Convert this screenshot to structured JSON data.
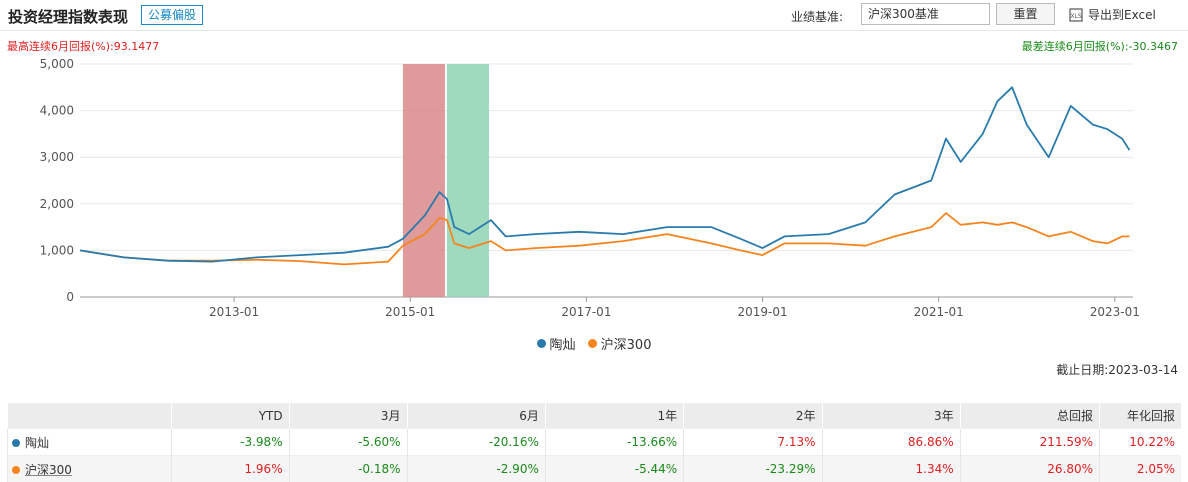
{
  "header": {
    "title": "投资经理指数表现",
    "tag": "公募偏股",
    "benchmark_label": "业绩基准:",
    "benchmark_value": "沪深300基准",
    "reset_label": "重置",
    "export_label": "导出到Excel"
  },
  "stats": {
    "max_label": "最高连续6月回报(%):",
    "max_value": "93.1477",
    "min_label": "最差连续6月回报(%):",
    "min_value": "-30.3467"
  },
  "cutoff": {
    "label": "截止日期:",
    "value": "2023-03-14"
  },
  "colors": {
    "manager": "#2a7bad",
    "benchmark": "#f5841f",
    "red_band": "#d98a8a",
    "green_band": "#8fd3b3",
    "pos": "#e02020",
    "neg": "#1a8a1a"
  },
  "chart_data": {
    "type": "line",
    "y_ticks": [
      "0",
      "1,000",
      "2,000",
      "3,000",
      "4,000",
      "5,000"
    ],
    "x_ticks": [
      "2013-01",
      "2015-01",
      "2017-01",
      "2019-01",
      "2021-01",
      "2023-01"
    ],
    "ylim": [
      0,
      5000
    ],
    "xlim": [
      "2011-04",
      "2023-03"
    ],
    "grid": "horizontal",
    "legend_position": "bottom",
    "shaded_periods": [
      {
        "start": "2014-12",
        "end": "2015-06",
        "color": "red"
      },
      {
        "start": "2015-06",
        "end": "2015-12",
        "color": "green"
      }
    ],
    "series": [
      {
        "name": "陶灿",
        "x": [
          "2011-04",
          "2011-10",
          "2012-04",
          "2012-10",
          "2013-04",
          "2013-10",
          "2014-04",
          "2014-10",
          "2014-12",
          "2015-03",
          "2015-05",
          "2015-06",
          "2015-07",
          "2015-09",
          "2015-12",
          "2016-02",
          "2016-06",
          "2016-12",
          "2017-06",
          "2017-12",
          "2018-06",
          "2018-10",
          "2019-01",
          "2019-04",
          "2019-10",
          "2020-03",
          "2020-07",
          "2020-12",
          "2021-02",
          "2021-04",
          "2021-07",
          "2021-09",
          "2021-11",
          "2022-01",
          "2022-04",
          "2022-07",
          "2022-10",
          "2022-12",
          "2023-02",
          "2023-03"
        ],
        "y": [
          1000,
          850,
          780,
          760,
          850,
          900,
          950,
          1080,
          1250,
          1750,
          2250,
          2100,
          1500,
          1350,
          1650,
          1300,
          1350,
          1400,
          1350,
          1500,
          1500,
          1250,
          1050,
          1300,
          1350,
          1600,
          2200,
          2500,
          3400,
          2900,
          3500,
          4200,
          4500,
          3700,
          3000,
          4100,
          3700,
          3600,
          3400,
          3150
        ]
      },
      {
        "name": "沪深300",
        "x": [
          "2011-04",
          "2011-10",
          "2012-04",
          "2012-10",
          "2013-04",
          "2013-10",
          "2014-04",
          "2014-10",
          "2014-12",
          "2015-03",
          "2015-05",
          "2015-06",
          "2015-07",
          "2015-09",
          "2015-12",
          "2016-02",
          "2016-06",
          "2016-12",
          "2017-06",
          "2017-12",
          "2018-06",
          "2018-10",
          "2019-01",
          "2019-04",
          "2019-10",
          "2020-03",
          "2020-07",
          "2020-12",
          "2021-02",
          "2021-04",
          "2021-07",
          "2021-09",
          "2021-11",
          "2022-01",
          "2022-04",
          "2022-07",
          "2022-10",
          "2022-12",
          "2023-02",
          "2023-03"
        ],
        "y": [
          1000,
          850,
          780,
          780,
          800,
          770,
          700,
          760,
          1100,
          1350,
          1700,
          1650,
          1150,
          1050,
          1200,
          1000,
          1050,
          1100,
          1200,
          1350,
          1150,
          1000,
          900,
          1150,
          1150,
          1100,
          1300,
          1500,
          1800,
          1550,
          1600,
          1550,
          1600,
          1500,
          1300,
          1400,
          1200,
          1150,
          1300,
          1300
        ]
      }
    ]
  },
  "table": {
    "headers": [
      "",
      "YTD",
      "3月",
      "6月",
      "1年",
      "2年",
      "3年",
      "总回报",
      "年化回报"
    ],
    "rows": [
      {
        "name": "陶灿",
        "values": [
          "-3.98%",
          "-5.60%",
          "-20.16%",
          "-13.66%",
          "7.13%",
          "86.86%",
          "211.59%",
          "10.22%"
        ]
      },
      {
        "name": "沪深300",
        "values": [
          "1.96%",
          "-0.18%",
          "-2.90%",
          "-5.44%",
          "-23.29%",
          "1.34%",
          "26.80%",
          "2.05%"
        ]
      }
    ]
  }
}
